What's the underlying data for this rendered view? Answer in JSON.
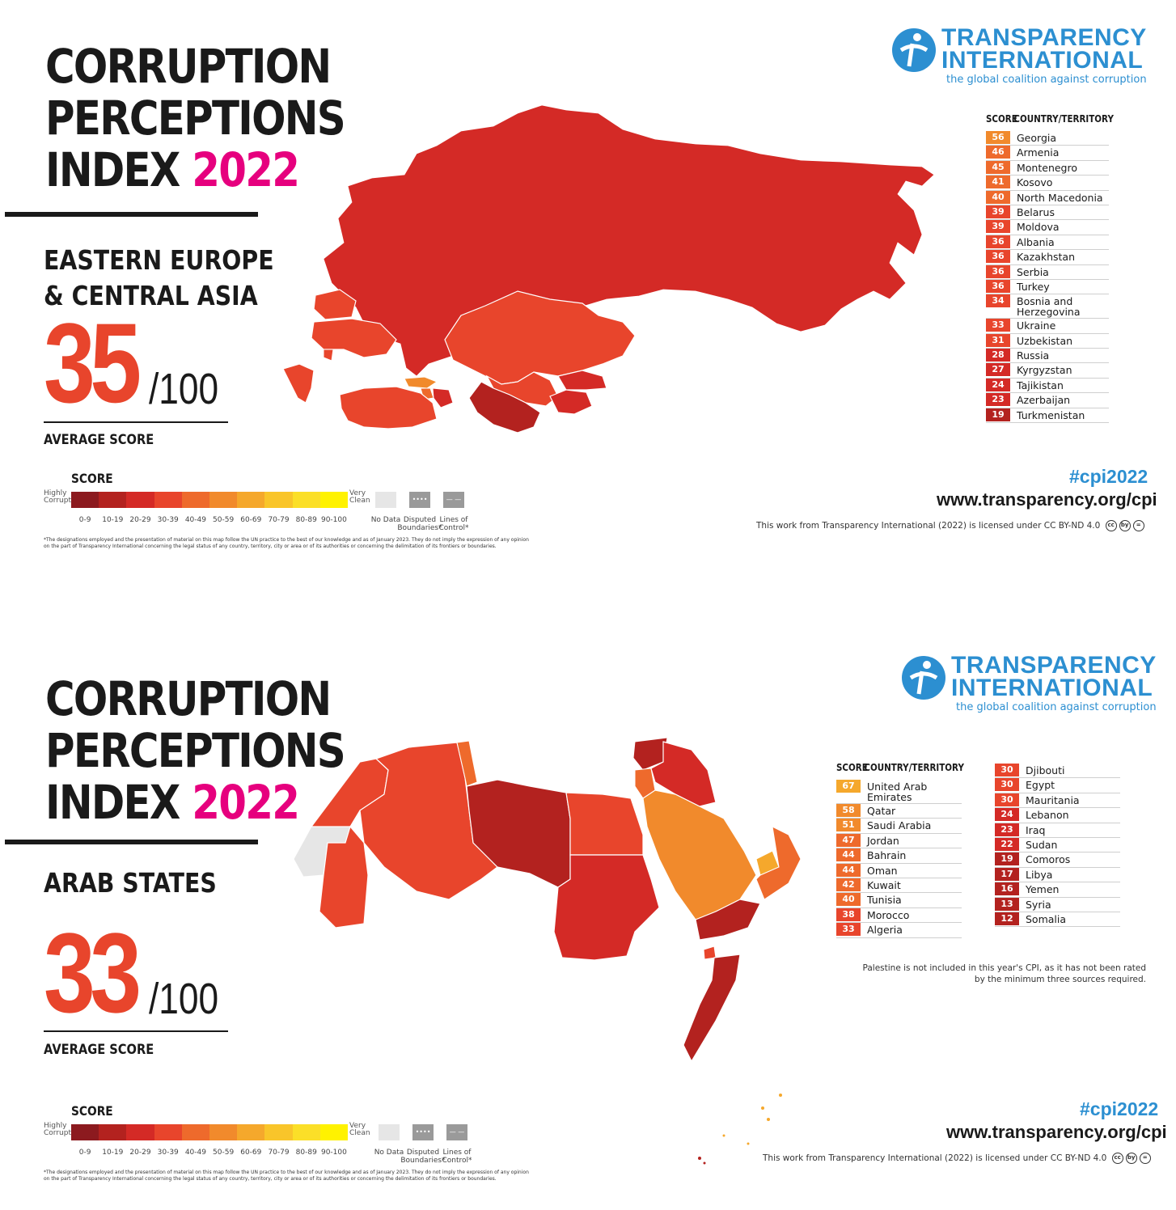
{
  "common": {
    "title_line1": "CORRUPTION",
    "title_line2": "PERCEPTIONS",
    "title_line3": "INDEX",
    "year": "2022",
    "score_denominator": "/100",
    "average_label": "AVERAGE SCORE",
    "legend_title": "SCORE",
    "legend_low": "Highly Corrupt",
    "legend_high": "Very Clean",
    "legend_ticks": [
      "0-9",
      "10-19",
      "20-29",
      "30-39",
      "40-49",
      "50-59",
      "60-69",
      "70-79",
      "80-89",
      "90-100"
    ],
    "legend_colors": [
      "#8c1a1f",
      "#b3221f",
      "#d42a26",
      "#e8452c",
      "#ee6a2c",
      "#f18a2c",
      "#f5a82c",
      "#f9c52a",
      "#fbdf28",
      "#fff200"
    ],
    "no_data_label": "No Data",
    "disputed_label": "Disputed Boundaries*",
    "lines_label": "Lines of Control*",
    "disputed_glyph": "••••",
    "lines_glyph": "— —",
    "footnote": "*The designations employed and the presentation of material on this map follow the UN practice to the best of our knowledge and as of January 2023. They do not imply the expression of any opinion on the part of Transparency International concerning the legal status of any country, territory, city or area or of its authorities or concerning the delimitation of its frontiers or boundaries.",
    "logo_line1": "TRANSPARENCY",
    "logo_line2": "INTERNATIONAL",
    "logo_tagline": "the global coalition against corruption",
    "table_score_header": "SCORE",
    "table_country_header": "COUNTRY/TERRITORY",
    "hashtag": "#cpi2022",
    "url": "www.transparency.org/cpi",
    "license": "This work from Transparency International (2022) is licensed under CC BY-ND 4.0",
    "cc_icons": [
      "cc",
      "by",
      "="
    ]
  },
  "poster1": {
    "region_line1": "EASTERN EUROPE",
    "region_line2": "& CENTRAL ASIA",
    "average_score": "35",
    "rows": [
      {
        "score": "56",
        "name": "Georgia",
        "color": "#f18a2c"
      },
      {
        "score": "46",
        "name": "Armenia",
        "color": "#ee6a2c"
      },
      {
        "score": "45",
        "name": "Montenegro",
        "color": "#ee6a2c"
      },
      {
        "score": "41",
        "name": "Kosovo",
        "color": "#ee6a2c"
      },
      {
        "score": "40",
        "name": "North Macedonia",
        "color": "#ee6a2c"
      },
      {
        "score": "39",
        "name": "Belarus",
        "color": "#e8452c"
      },
      {
        "score": "39",
        "name": "Moldova",
        "color": "#e8452c"
      },
      {
        "score": "36",
        "name": "Albania",
        "color": "#e8452c"
      },
      {
        "score": "36",
        "name": "Kazakhstan",
        "color": "#e8452c"
      },
      {
        "score": "36",
        "name": "Serbia",
        "color": "#e8452c"
      },
      {
        "score": "36",
        "name": "Turkey",
        "color": "#e8452c"
      },
      {
        "score": "34",
        "name": "Bosnia and Herzegovina",
        "color": "#e8452c"
      },
      {
        "score": "33",
        "name": "Ukraine",
        "color": "#e8452c"
      },
      {
        "score": "31",
        "name": "Uzbekistan",
        "color": "#e8452c"
      },
      {
        "score": "28",
        "name": "Russia",
        "color": "#d42a26"
      },
      {
        "score": "27",
        "name": "Kyrgyzstan",
        "color": "#d42a26"
      },
      {
        "score": "24",
        "name": "Tajikistan",
        "color": "#d42a26"
      },
      {
        "score": "23",
        "name": "Azerbaijan",
        "color": "#d42a26"
      },
      {
        "score": "19",
        "name": "Turkmenistan",
        "color": "#b3221f"
      }
    ]
  },
  "poster2": {
    "region_line1": "ARAB STATES",
    "average_score": "33",
    "rows_left": [
      {
        "score": "67",
        "name": "United Arab Emirates",
        "color": "#f5a82c"
      },
      {
        "score": "58",
        "name": "Qatar",
        "color": "#f18a2c"
      },
      {
        "score": "51",
        "name": "Saudi Arabia",
        "color": "#f18a2c"
      },
      {
        "score": "47",
        "name": "Jordan",
        "color": "#ee6a2c"
      },
      {
        "score": "44",
        "name": "Bahrain",
        "color": "#ee6a2c"
      },
      {
        "score": "44",
        "name": "Oman",
        "color": "#ee6a2c"
      },
      {
        "score": "42",
        "name": "Kuwait",
        "color": "#ee6a2c"
      },
      {
        "score": "40",
        "name": "Tunisia",
        "color": "#ee6a2c"
      },
      {
        "score": "38",
        "name": "Morocco",
        "color": "#e8452c"
      },
      {
        "score": "33",
        "name": "Algeria",
        "color": "#e8452c"
      }
    ],
    "rows_right": [
      {
        "score": "30",
        "name": "Djibouti",
        "color": "#e8452c"
      },
      {
        "score": "30",
        "name": "Egypt",
        "color": "#e8452c"
      },
      {
        "score": "30",
        "name": "Mauritania",
        "color": "#e8452c"
      },
      {
        "score": "24",
        "name": "Lebanon",
        "color": "#d42a26"
      },
      {
        "score": "23",
        "name": "Iraq",
        "color": "#d42a26"
      },
      {
        "score": "22",
        "name": "Sudan",
        "color": "#d42a26"
      },
      {
        "score": "19",
        "name": "Comoros",
        "color": "#b3221f"
      },
      {
        "score": "17",
        "name": "Libya",
        "color": "#b3221f"
      },
      {
        "score": "16",
        "name": "Yemen",
        "color": "#b3221f"
      },
      {
        "score": "13",
        "name": "Syria",
        "color": "#b3221f"
      },
      {
        "score": "12",
        "name": "Somalia",
        "color": "#b3221f"
      }
    ],
    "note": "Palestine is not included in this year's CPI, as it has not been rated by the minimum three sources required."
  }
}
